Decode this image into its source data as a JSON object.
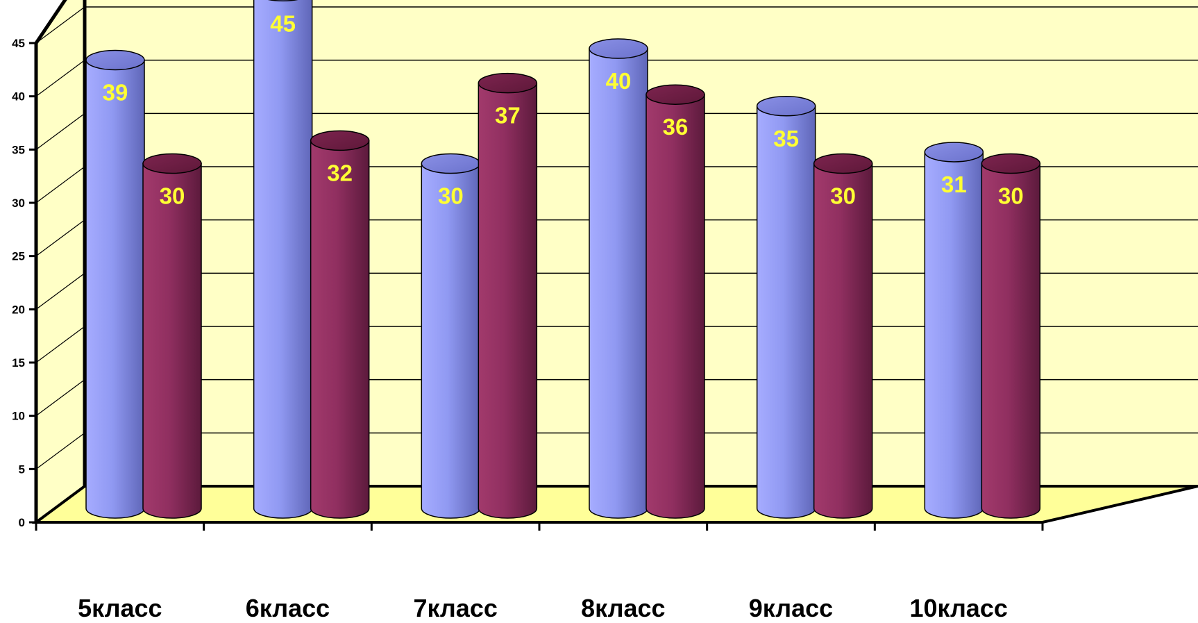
{
  "chart_data": {
    "type": "bar",
    "style": "3d-cylinder",
    "categories": [
      "5класс",
      "6класс",
      "7класс",
      "8класс",
      "9класс",
      "10класс"
    ],
    "series": [
      {
        "values": [
          39,
          45,
          30,
          40,
          35,
          31
        ],
        "color": "#8c93ee"
      },
      {
        "values": [
          30,
          32,
          37,
          36,
          30,
          30
        ],
        "color": "#8e2e5e"
      }
    ],
    "ylim": [
      0,
      45
    ],
    "yticks": [
      "0",
      "5",
      "10",
      "15",
      "20",
      "25",
      "30",
      "35",
      "40",
      "45"
    ],
    "grid": true,
    "legend": "none",
    "data_labels": true,
    "colors": {
      "wall": "#ffffc6",
      "floor": "#ffff99",
      "label": "#ffff33",
      "axis": "#000000"
    }
  }
}
